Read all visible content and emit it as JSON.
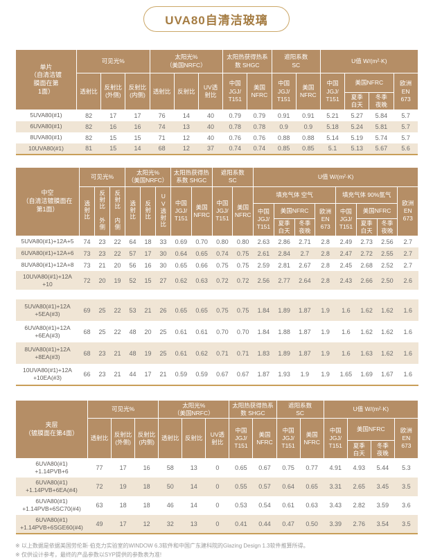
{
  "title": "UVA80自清洁玻璃",
  "colors": {
    "header_bg": "#b58e66",
    "row_alt_bg": "#f0e5d5",
    "accent_line": "#c89e58",
    "title_text": "#a57c42",
    "title_border": "#cba666"
  },
  "h": {
    "visible": "可见光%",
    "solar": "太阳光%\n（美国NRFC）",
    "shgc": "太阳热获得热系数 SHGC",
    "sc": "遮阳系数\nSC",
    "uvalue": "U值 W/(m²·K)",
    "trans": "透射比",
    "refl_out": "反射比\n(外侧)",
    "refl_in": "反射比\n(内侧)",
    "refl": "反射比",
    "uv": "UV透\n射比",
    "china": "中国\nJGJ/\nT151",
    "usa": "美国\nNFRC",
    "usa1": "美国NFRC",
    "europe": "欧洲\nEN\n673",
    "summer": "夏季\n白天",
    "winter": "冬季\n夜晚",
    "gas_air": "填充气体 空气",
    "gas_argon": "填充气体 90%氩气",
    "v_trans": "透射比",
    "v_refl_out": "反射比 外侧",
    "v_refl_in": "反射比 内侧",
    "v_refl": "反射比",
    "v_uv": "UV透射比"
  },
  "t1": {
    "corner": "单片\n（自清洁镀\n膜面在第\n1面）",
    "rows": [
      {
        "label": "5UVA80(#1)",
        "values": [
          "82",
          "17",
          "17",
          "76",
          "14",
          "40",
          "0.79",
          "0.79",
          "0.91",
          "0.91",
          "5.21",
          "5.27",
          "5.84",
          "5.7"
        ]
      },
      {
        "label": "6UVA80(#1)",
        "values": [
          "82",
          "16",
          "16",
          "74",
          "13",
          "40",
          "0.78",
          "0.78",
          "0.9",
          "0.9",
          "5.18",
          "5.24",
          "5.81",
          "5.7"
        ]
      },
      {
        "label": "8UVA80(#1)",
        "values": [
          "82",
          "15",
          "15",
          "71",
          "12",
          "40",
          "0.76",
          "0.76",
          "0.88",
          "0.88",
          "5.14",
          "5.19",
          "5.74",
          "5.7"
        ]
      },
      {
        "label": "10UVA80(#1)",
        "values": [
          "81",
          "15",
          "14",
          "68",
          "12",
          "37",
          "0.74",
          "0.74",
          "0.85",
          "0.85",
          "5.1",
          "5.13",
          "5.67",
          "5.6"
        ]
      }
    ]
  },
  "t2": {
    "corner": "中空\n（自清洁镀膜面在\n第1面）",
    "group1": [
      {
        "label": "5UVA80(#1)+12A+5",
        "values": [
          "74",
          "23",
          "22",
          "64",
          "18",
          "33",
          "0.69",
          "0.70",
          "0.80",
          "0.80",
          "2.63",
          "2.86",
          "2.71",
          "2.8",
          "2.49",
          "2.73",
          "2.56",
          "2.7"
        ]
      },
      {
        "label": "6UVA80(#1)+12A+6",
        "values": [
          "73",
          "23",
          "22",
          "57",
          "17",
          "30",
          "0.64",
          "0.65",
          "0.74",
          "0.75",
          "2.61",
          "2.84",
          "2.7",
          "2.8",
          "2.47",
          "2.72",
          "2.55",
          "2.7"
        ]
      },
      {
        "label": "8UVA80(#1)+12A+8",
        "values": [
          "73",
          "21",
          "20",
          "56",
          "16",
          "30",
          "0.65",
          "0.66",
          "0.75",
          "0.75",
          "2.59",
          "2.81",
          "2.67",
          "2.8",
          "2.45",
          "2.68",
          "2.52",
          "2.7"
        ]
      },
      {
        "label": "10UVA80(#1)+12A\n+10",
        "values": [
          "72",
          "20",
          "19",
          "52",
          "15",
          "27",
          "0.62",
          "0.63",
          "0.72",
          "0.72",
          "2.56",
          "2.77",
          "2.64",
          "2.8",
          "2.43",
          "2.66",
          "2.50",
          "2.6"
        ]
      }
    ],
    "group2": [
      {
        "label": "5UVA80(#1)+12A\n+5EA(#3)",
        "values": [
          "69",
          "25",
          "22",
          "53",
          "21",
          "26",
          "0.65",
          "0.65",
          "0.75",
          "0.75",
          "1.84",
          "1.89",
          "1.87",
          "1.9",
          "1.6",
          "1.62",
          "1.62",
          "1.6"
        ]
      },
      {
        "label": "6UVA80(#1)+12A\n+6EA(#3)",
        "values": [
          "68",
          "25",
          "22",
          "48",
          "20",
          "25",
          "0.61",
          "0.61",
          "0.70",
          "0.70",
          "1.84",
          "1.88",
          "1.87",
          "1.9",
          "1.6",
          "1.62",
          "1.62",
          "1.6"
        ]
      },
      {
        "label": "8UVA80(#1)+12A\n+8EA(#3)",
        "values": [
          "68",
          "23",
          "21",
          "48",
          "19",
          "25",
          "0.61",
          "0.62",
          "0.71",
          "0.71",
          "1.83",
          "1.89",
          "1.87",
          "1.9",
          "1.6",
          "1.63",
          "1.62",
          "1.6"
        ]
      },
      {
        "label": "10UVA80(#1)+12A\n+10EA(#3)",
        "values": [
          "66",
          "23",
          "21",
          "44",
          "17",
          "21",
          "0.59",
          "0.59",
          "0.67",
          "0.67",
          "1.87",
          "1.93",
          "1.9",
          "1.9",
          "1.65",
          "1.69",
          "1.67",
          "1.6"
        ]
      }
    ]
  },
  "t3": {
    "corner": "夹层\n（镀膜面在第4面）",
    "rows": [
      {
        "label": "6UVA80(#1)\n+1.14PVB+6",
        "values": [
          "77",
          "17",
          "16",
          "58",
          "13",
          "0",
          "0.65",
          "0.67",
          "0.75",
          "0.77",
          "4.91",
          "4.93",
          "5.44",
          "5.3"
        ]
      },
      {
        "label": "6UVA80(#1)\n+1.14PVB+6EA(#4)",
        "values": [
          "72",
          "19",
          "18",
          "50",
          "14",
          "0",
          "0.55",
          "0.57",
          "0.64",
          "0.65",
          "3.31",
          "2.65",
          "3.45",
          "3.5"
        ]
      },
      {
        "label": "6UVA80(#1)\n+1.14PVB+6SC70(#4)",
        "values": [
          "63",
          "18",
          "18",
          "46",
          "14",
          "0",
          "0.53",
          "0.54",
          "0.61",
          "0.63",
          "3.43",
          "2.82",
          "3.59",
          "3.6"
        ]
      },
      {
        "label": "6UVA80(#1)\n+1.14PVB+6SGE60(#4)",
        "values": [
          "49",
          "17",
          "12",
          "32",
          "13",
          "0",
          "0.41",
          "0.44",
          "0.47",
          "0.50",
          "3.39",
          "2.76",
          "3.54",
          "3.5"
        ]
      }
    ]
  },
  "footnotes": [
    "※ 以上数据是依据美国劳伦斯·伯克力实验室的WINDOW 6.3软件和中国广东建科院的Glazing Design 1.3软件推算所得。",
    "※ 仅供设计参考，最终的产品参数以SYP提供的参数表为准!"
  ]
}
